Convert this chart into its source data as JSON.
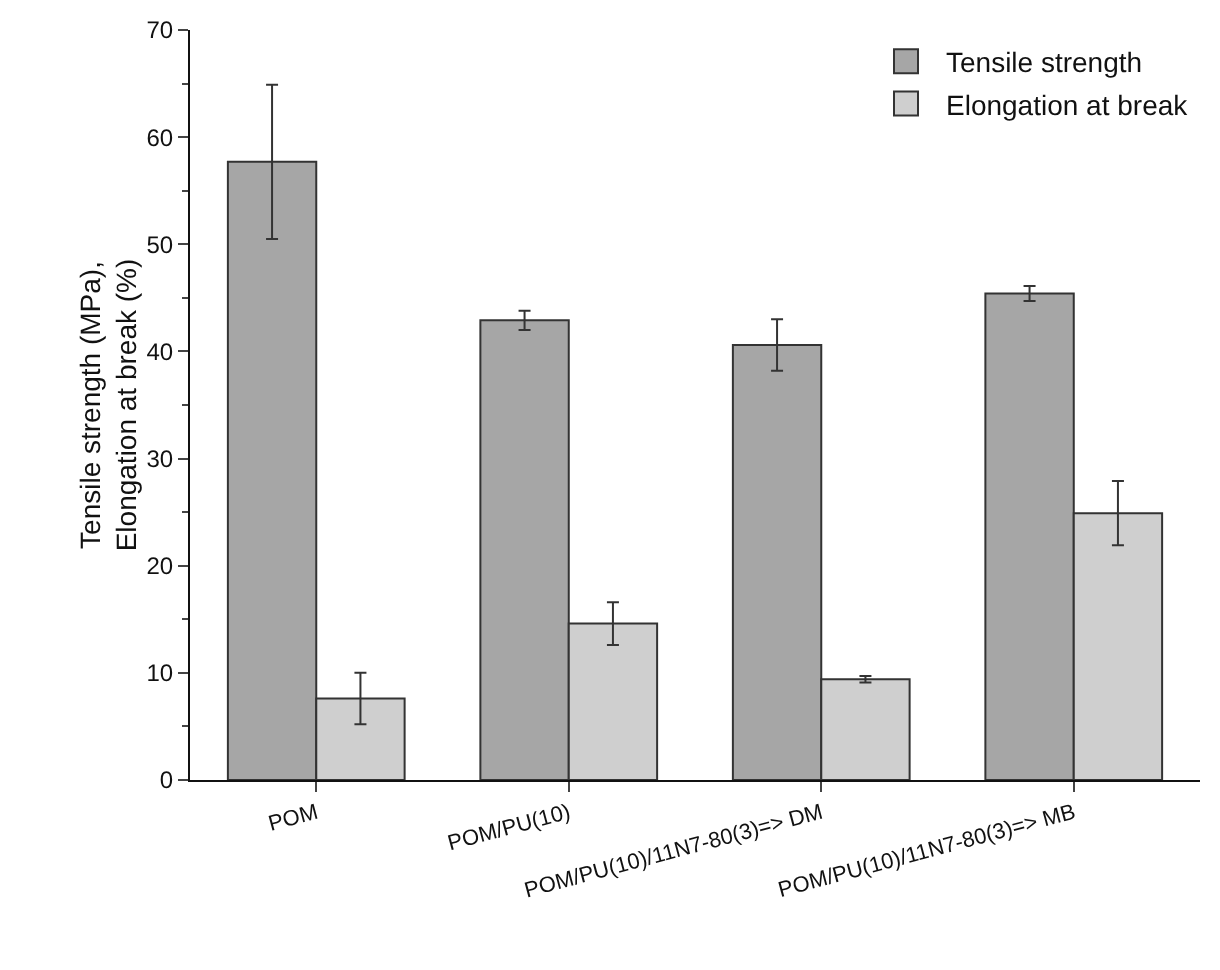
{
  "chart_data": {
    "type": "bar",
    "ylabel": "Tensile strength (MPa),\nElongation at break (%)",
    "categories": [
      "POM",
      "POM/PU(10)",
      "POM/PU(10)/11N7-80(3)=> DM",
      "POM/PU(10)/11N7-80(3)=> MB"
    ],
    "series": [
      {
        "name": "Tensile strength",
        "color": "#a6a6a6",
        "values": [
          57.7,
          42.9,
          40.6,
          45.4
        ],
        "errors": [
          7.2,
          0.9,
          2.4,
          0.7
        ]
      },
      {
        "name": "Elongation at break",
        "color": "#cfcfcf",
        "values": [
          7.6,
          14.6,
          9.4,
          24.9
        ],
        "errors": [
          2.4,
          2,
          0.3,
          3
        ]
      }
    ],
    "ylim": [
      0,
      70
    ],
    "yticks": [
      0,
      10,
      20,
      30,
      40,
      50,
      60,
      70
    ],
    "grid": false,
    "legend": "top right"
  }
}
